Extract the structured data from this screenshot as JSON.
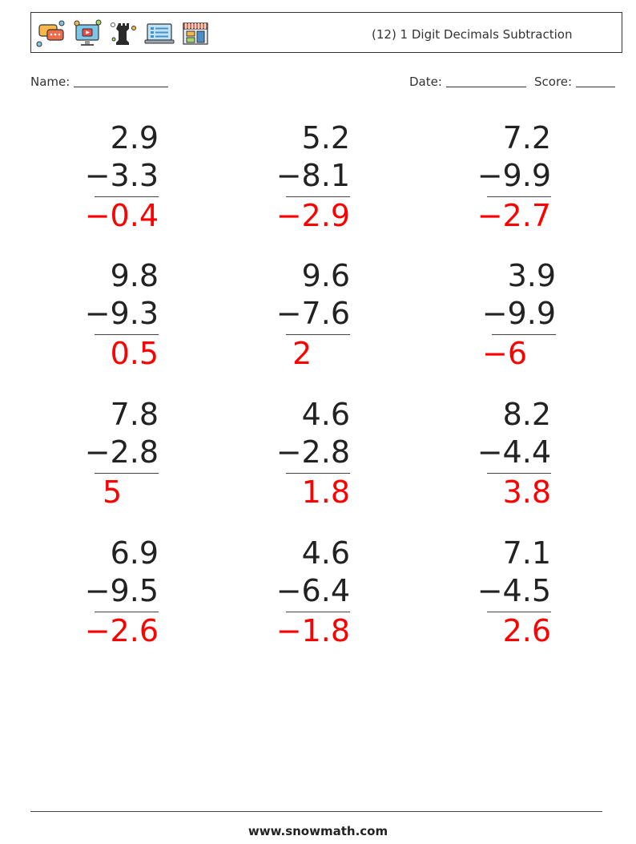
{
  "header": {
    "title": "(12) 1 Digit Decimals Subtraction",
    "icons": [
      "chat-bubbles-icon",
      "video-monitor-icon",
      "chess-rook-icon",
      "laptop-checklist-icon",
      "storefront-icon"
    ]
  },
  "meta": {
    "name_label": "Name:",
    "date_label": "Date:",
    "score_label": "Score:"
  },
  "problems": [
    {
      "top": "2.9",
      "sub": "−3.3",
      "ans": "−0.4"
    },
    {
      "top": "5.2",
      "sub": "−8.1",
      "ans": "−2.9"
    },
    {
      "top": "7.2",
      "sub": "−9.9",
      "ans": "−2.7"
    },
    {
      "top": "9.8",
      "sub": "−9.3",
      "ans": "0.5"
    },
    {
      "top": "9.6",
      "sub": "−7.6",
      "ans": "2"
    },
    {
      "top": "3.9",
      "sub": "−9.9",
      "ans": "−6"
    },
    {
      "top": "7.8",
      "sub": "−2.8",
      "ans": "5"
    },
    {
      "top": "4.6",
      "sub": "−2.8",
      "ans": "1.8"
    },
    {
      "top": "8.2",
      "sub": "−4.4",
      "ans": "3.8"
    },
    {
      "top": "6.9",
      "sub": "−9.5",
      "ans": "−2.6"
    },
    {
      "top": "4.6",
      "sub": "−6.4",
      "ans": "−1.8"
    },
    {
      "top": "7.1",
      "sub": "−4.5",
      "ans": "2.6"
    }
  ],
  "footer": {
    "site": "www.snowmath.com"
  },
  "colors": {
    "answer": "#ff0000",
    "text": "#222222"
  }
}
